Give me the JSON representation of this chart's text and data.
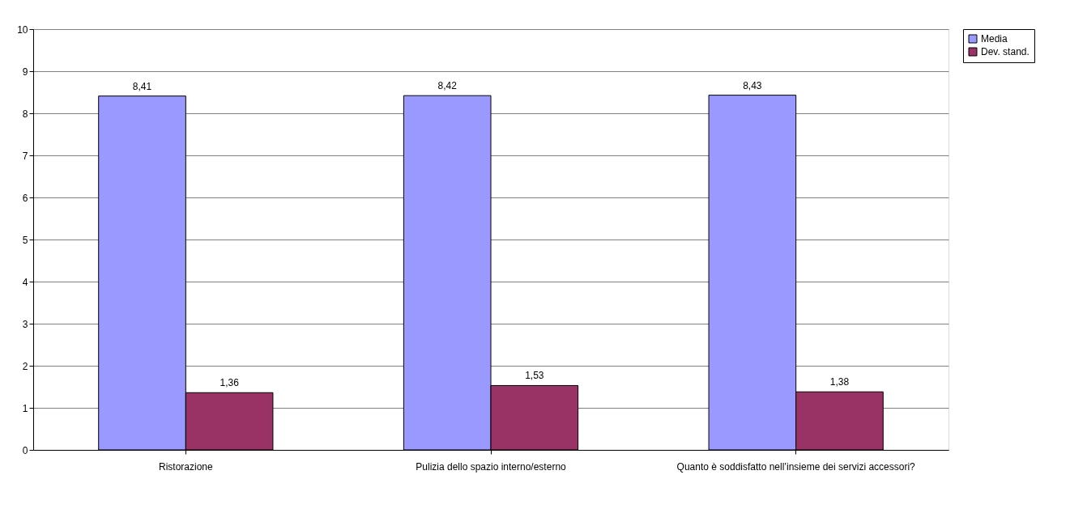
{
  "chart_data": {
    "type": "bar",
    "categories": [
      "Ristorazione",
      "Pulizia dello spazio interno/esterno",
      "Quanto è soddisfatto nell’insieme dei servizi accessori?"
    ],
    "series": [
      {
        "name": "Media",
        "color": "#9999ff",
        "values": [
          8.41,
          8.42,
          8.43
        ]
      },
      {
        "name": "Dev. stand.",
        "color": "#993366",
        "values": [
          1.36,
          1.53,
          1.38
        ]
      }
    ],
    "value_labels": [
      [
        "8,41",
        "8,42",
        "8,43"
      ],
      [
        "1,36",
        "1,53",
        "1,38"
      ]
    ],
    "ylim": [
      0,
      10
    ],
    "yticks": [
      0,
      1,
      2,
      3,
      4,
      5,
      6,
      7,
      8,
      9,
      10
    ],
    "grid": "y",
    "legend": "right"
  }
}
